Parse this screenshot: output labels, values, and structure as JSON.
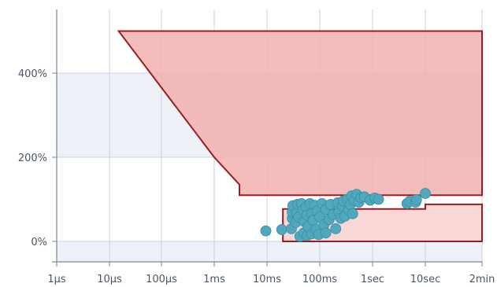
{
  "chart_data": {
    "type": "scatter",
    "x_scale": "log",
    "x_tick_labels": [
      "1µs",
      "10µs",
      "100µs",
      "1ms",
      "10ms",
      "100ms",
      "1sec",
      "10sec",
      "2min"
    ],
    "x_tick_values_sec": [
      1e-06,
      1e-05,
      0.0001,
      0.001,
      0.01,
      0.1,
      1,
      10,
      120
    ],
    "y_tick_labels": [
      "0%",
      "200%",
      "400%"
    ],
    "y_tick_values": [
      0,
      200,
      400
    ],
    "ylim": [
      -50,
      550
    ],
    "grid": true,
    "colors": {
      "upper_region_fill": "#f3b0b0",
      "upper_region_stroke": "#9b1c1c",
      "lower_region_fill": "#f9d3d3",
      "lower_region_stroke": "#9b1c1c",
      "points": "#4fa8bd",
      "band": "#eef2f8",
      "grid": "#c8d3e0"
    },
    "regions": [
      {
        "name": "",
        "points": [
          [
            1.5e-05,
            500
          ],
          [
            120,
            500
          ],
          [
            120,
            110
          ],
          [
            0.003,
            110
          ],
          [
            0.003,
            135
          ],
          [
            0.001,
            200
          ]
        ]
      },
      {
        "name": "",
        "points": [
          [
            0.02,
            0
          ],
          [
            120,
            0
          ],
          [
            120,
            88
          ],
          [
            10,
            88
          ],
          [
            10,
            77
          ],
          [
            0.02,
            77
          ]
        ]
      }
    ],
    "series": [
      {
        "name": "",
        "points": [
          [
            0.0095,
            25
          ],
          [
            0.019,
            28
          ],
          [
            0.029,
            30
          ],
          [
            0.03,
            55
          ],
          [
            0.03,
            70
          ],
          [
            0.031,
            85
          ],
          [
            0.035,
            45
          ],
          [
            0.036,
            68
          ],
          [
            0.038,
            88
          ],
          [
            0.04,
            58
          ],
          [
            0.042,
            12
          ],
          [
            0.045,
            90
          ],
          [
            0.048,
            75
          ],
          [
            0.05,
            48
          ],
          [
            0.05,
            20
          ],
          [
            0.055,
            82
          ],
          [
            0.057,
            62
          ],
          [
            0.058,
            14
          ],
          [
            0.06,
            35
          ],
          [
            0.065,
            90
          ],
          [
            0.07,
            66
          ],
          [
            0.07,
            18
          ],
          [
            0.075,
            50
          ],
          [
            0.08,
            86
          ],
          [
            0.085,
            28
          ],
          [
            0.09,
            72
          ],
          [
            0.095,
            16
          ],
          [
            0.1,
            58
          ],
          [
            0.11,
            90
          ],
          [
            0.12,
            40
          ],
          [
            0.13,
            76
          ],
          [
            0.13,
            20
          ],
          [
            0.15,
            52
          ],
          [
            0.16,
            88
          ],
          [
            0.18,
            64
          ],
          [
            0.2,
            30
          ],
          [
            0.22,
            92
          ],
          [
            0.23,
            70
          ],
          [
            0.25,
            55
          ],
          [
            0.27,
            84
          ],
          [
            0.28,
            96
          ],
          [
            0.3,
            60
          ],
          [
            0.33,
            100
          ],
          [
            0.35,
            75
          ],
          [
            0.38,
            88
          ],
          [
            0.4,
            108
          ],
          [
            0.42,
            66
          ],
          [
            0.45,
            97
          ],
          [
            0.5,
            112
          ],
          [
            0.55,
            93
          ],
          [
            0.6,
            104
          ],
          [
            0.7,
            106
          ],
          [
            0.9,
            98
          ],
          [
            1.1,
            103
          ],
          [
            1.3,
            100
          ],
          [
            4.5,
            90
          ],
          [
            5,
            95
          ],
          [
            6.5,
            93
          ],
          [
            6.8,
            99
          ],
          [
            10,
            114
          ]
        ]
      }
    ]
  }
}
